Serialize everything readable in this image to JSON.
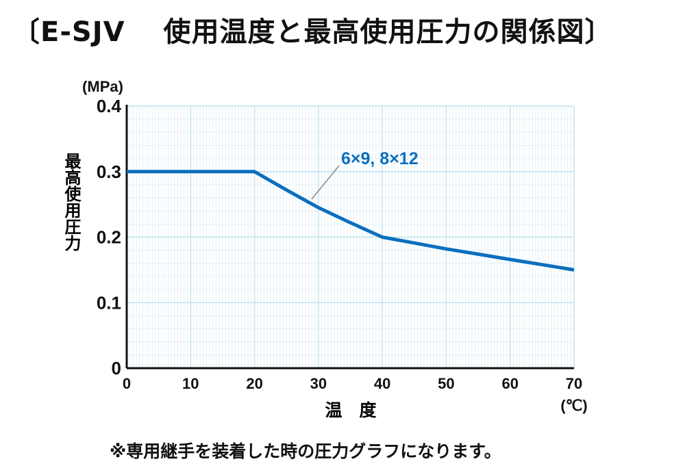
{
  "title": "〔E-SJV　 使用温度と最高使用圧力の関係図〕",
  "footnote": "※専用継手を装着した時の圧力グラフになります。",
  "chart_data": {
    "type": "line",
    "xlabel": "温　度",
    "ylabel": "最高使用圧力",
    "x_unit": "(℃)",
    "y_unit": "(MPa)",
    "xlim": [
      0,
      70
    ],
    "ylim": [
      0,
      0.4
    ],
    "x_ticks": [
      "0",
      "10",
      "20",
      "30",
      "40",
      "50",
      "60",
      "70"
    ],
    "y_ticks": [
      "0",
      "0.1",
      "0.2",
      "0.3",
      "0.4"
    ],
    "grid": true,
    "series": [
      {
        "name": "6×9,  8×12",
        "color": "#0a6fbf",
        "x": [
          0,
          20,
          25,
          30,
          35,
          40,
          45,
          50,
          55,
          60,
          65,
          70
        ],
        "y": [
          0.3,
          0.3,
          0.272,
          0.245,
          0.222,
          0.2,
          0.191,
          0.182,
          0.174,
          0.166,
          0.158,
          0.15
        ]
      }
    ]
  }
}
